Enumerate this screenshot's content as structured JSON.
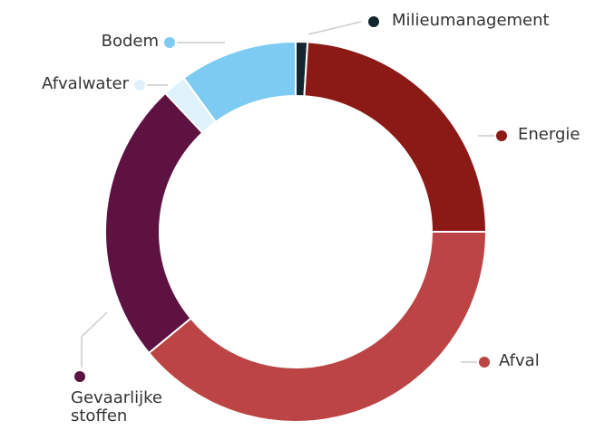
{
  "chart_data": {
    "type": "donut",
    "categories": [
      "Milieumanagement",
      "Energie",
      "Afval",
      "Gevaarlijke stoffen",
      "Afvalwater",
      "Bodem"
    ],
    "values": [
      1,
      24,
      39,
      24,
      2,
      10
    ],
    "colors": [
      "#13262f",
      "#8b1a17",
      "#bc4444",
      "#5e1241",
      "#dff1fb",
      "#7dcbf2"
    ]
  }
}
